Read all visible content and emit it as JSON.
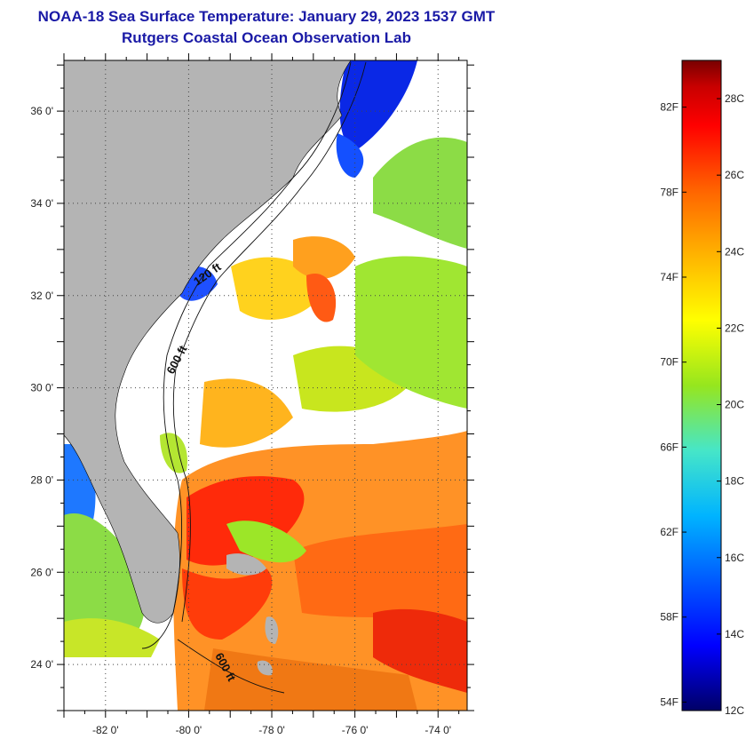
{
  "title": {
    "line1": "NOAA-18 Sea Surface Temperature:  January 29, 2023 1537 GMT",
    "line2": "Rutgers Coastal Ocean Observation Lab"
  },
  "map": {
    "lon_ticks": [
      "-82 0'",
      "-80 0'",
      "-78 0'",
      "-76 0'",
      "-74 0'"
    ],
    "lon_values": [
      -82,
      -80,
      -78,
      -76,
      -74
    ],
    "lat_ticks": [
      "36 0'",
      "34 0'",
      "32 0'",
      "30 0'",
      "28 0'",
      "26 0'",
      "24 0'"
    ],
    "lat_values": [
      36,
      34,
      32,
      30,
      28,
      26,
      24
    ],
    "lon_range": [
      -83,
      -73.3
    ],
    "lat_range": [
      23,
      37.1
    ],
    "contours": [
      {
        "label": "120 ft"
      },
      {
        "label": "600 ft"
      },
      {
        "label": "600 ft"
      }
    ],
    "colors": {
      "land": "#b4b4b4",
      "cloud": "#ffffff"
    }
  },
  "colorbar": {
    "fahrenheit_labels": [
      "82F",
      "78F",
      "74F",
      "70F",
      "66F",
      "62F",
      "58F",
      "54F"
    ],
    "fahrenheit_values": [
      82,
      78,
      74,
      70,
      66,
      62,
      58,
      54
    ],
    "celsius_labels": [
      "28C",
      "26C",
      "24C",
      "22C",
      "20C",
      "18C",
      "16C",
      "14C",
      "12C"
    ],
    "celsius_values": [
      28,
      26,
      24,
      22,
      20,
      18,
      16,
      14,
      12
    ],
    "range_c": [
      12,
      29
    ],
    "stops": [
      "#000066",
      "#0000ff",
      "#00b4ff",
      "#46e6c8",
      "#96e61e",
      "#ffff00",
      "#ffb400",
      "#ff6400",
      "#ff0000",
      "#c80000",
      "#780000"
    ]
  }
}
